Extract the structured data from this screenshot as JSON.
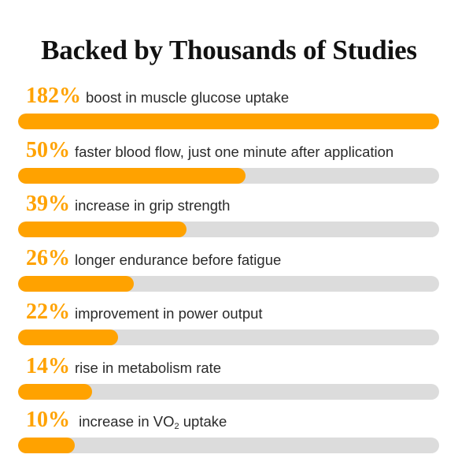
{
  "title": "Backed by Thousands of Studies",
  "colors": {
    "accent": "#FFA200",
    "track": "#DCDCDC"
  },
  "chart_data": {
    "type": "bar",
    "orientation": "horizontal",
    "title": "Backed by Thousands of Studies",
    "max": 182,
    "items": [
      {
        "value": 182,
        "value_label": "182%",
        "text": "boost in muscle glucose uptake"
      },
      {
        "value": 50,
        "value_label": "50%",
        "text": "faster blood flow, just one minute after application"
      },
      {
        "value": 39,
        "value_label": "39%",
        "text": "increase in grip strength"
      },
      {
        "value": 26,
        "value_label": "26%",
        "text": "longer endurance before fatigue"
      },
      {
        "value": 22,
        "value_label": "22%",
        "text": "improvement in power output"
      },
      {
        "value": 14,
        "value_label": "14%",
        "text": "rise in metabolism rate"
      },
      {
        "value": 10,
        "value_label": "10%",
        "text_before": "increase in VO",
        "text_sub": "2",
        "text_after": " uptake"
      }
    ],
    "fill_fractions": [
      1.0,
      0.54,
      0.4,
      0.275,
      0.237,
      0.176,
      0.135
    ]
  }
}
